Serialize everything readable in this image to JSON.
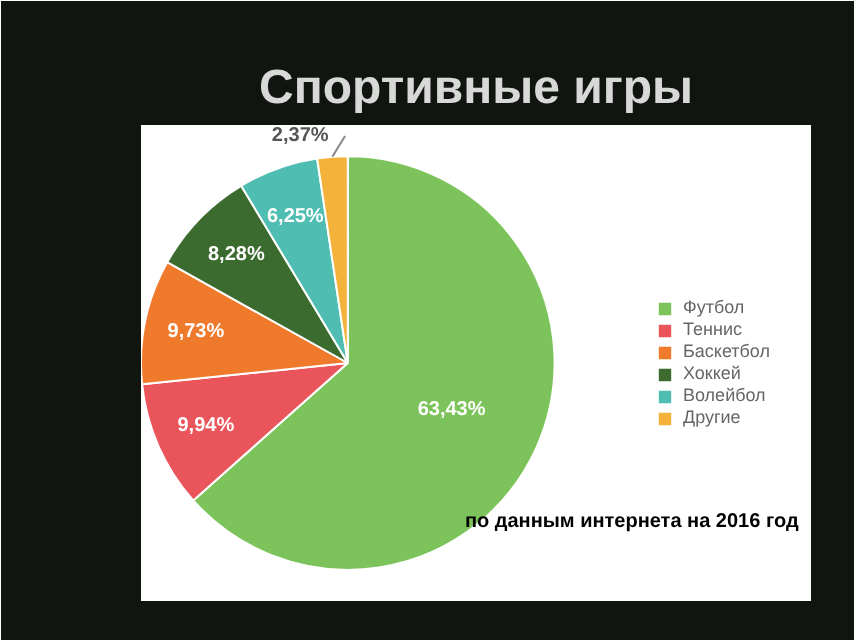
{
  "chart_data": {
    "type": "pie",
    "title": "Спортивные игры",
    "categories": [
      "Футбол",
      "Теннис",
      "Баскетбол",
      "Хоккей",
      "Волейбол",
      "Другие"
    ],
    "values": [
      63.43,
      9.94,
      9.73,
      8.28,
      6.25,
      2.37
    ],
    "value_labels": [
      "63,43%",
      "9,94%",
      "9,73%",
      "8,28%",
      "6,25%",
      "2,37%"
    ],
    "colors": [
      "#7cc35b",
      "#e9555a",
      "#f07a2c",
      "#3c6b30",
      "#4fbdb1",
      "#f4b23a"
    ],
    "legend": "right",
    "annotations": [
      "по данным интернета на 2016 год"
    ]
  }
}
